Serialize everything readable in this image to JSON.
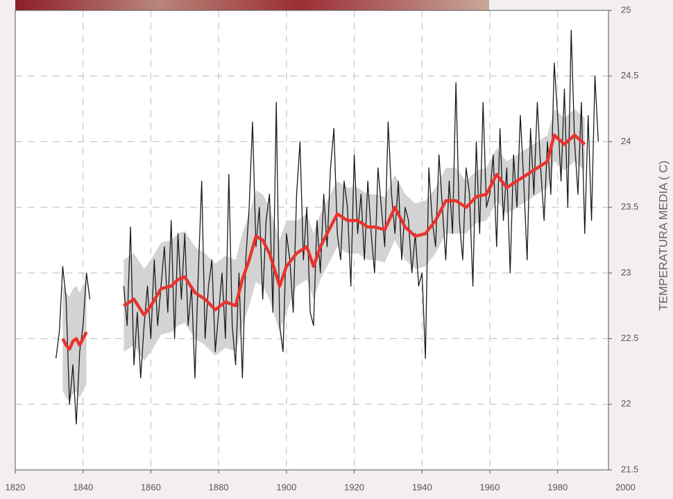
{
  "chart_data": {
    "type": "line",
    "ylabel": "TEMPERATURA MEDIA ( C)",
    "xlim": [
      1820,
      1995
    ],
    "xticks": [
      1820,
      1840,
      1860,
      1880,
      1900,
      1920,
      1940,
      1960,
      1980,
      2000
    ],
    "ylim": [
      21.5,
      25
    ],
    "yticks": [
      21.5,
      22,
      22.5,
      23,
      23.5,
      24,
      24.5,
      25
    ],
    "grid": true,
    "band": {
      "color": "#d3d3d3",
      "x": [
        1834,
        1835,
        1836,
        1837,
        1838,
        1839,
        1840,
        1841,
        1847,
        1852,
        1855,
        1858,
        1860,
        1863,
        1866,
        1868,
        1870,
        1873,
        1876,
        1879,
        1882,
        1885,
        1887,
        1889,
        1891,
        1893,
        1895,
        1898,
        1900,
        1903,
        1906,
        1908,
        1910,
        1912,
        1915,
        1918,
        1921,
        1924,
        1926,
        1929,
        1932,
        1935,
        1938,
        1941,
        1944,
        1947,
        1950,
        1953,
        1956,
        1959,
        1962,
        1965,
        1968,
        1971,
        1974,
        1977,
        1979,
        1982,
        1985,
        1988
      ],
      "lower": [
        22.1,
        22.05,
        22.02,
        22.08,
        22.1,
        22.05,
        22.1,
        22.15,
        null,
        22.4,
        22.45,
        22.33,
        22.4,
        22.53,
        22.55,
        22.6,
        22.62,
        22.5,
        22.45,
        22.37,
        22.43,
        22.4,
        22.6,
        22.75,
        22.93,
        22.9,
        22.8,
        22.55,
        22.7,
        22.9,
        22.95,
        22.8,
        22.95,
        23.05,
        23.2,
        23.15,
        23.15,
        23.1,
        23.1,
        23.08,
        23.25,
        23.1,
        23.03,
        23.05,
        23.15,
        23.3,
        23.3,
        23.3,
        23.38,
        23.4,
        23.55,
        23.45,
        23.5,
        23.55,
        23.6,
        23.65,
        23.85,
        23.78,
        23.85,
        23.78
      ],
      "upper": [
        22.9,
        22.85,
        22.82,
        22.88,
        22.9,
        22.85,
        22.9,
        22.95,
        null,
        23.1,
        23.15,
        23.03,
        23.1,
        23.23,
        23.25,
        23.3,
        23.32,
        23.2,
        23.15,
        23.07,
        23.13,
        23.1,
        23.3,
        23.45,
        23.63,
        23.6,
        23.5,
        23.25,
        23.4,
        23.4,
        23.45,
        23.3,
        23.45,
        23.55,
        23.7,
        23.65,
        23.65,
        23.6,
        23.6,
        23.58,
        23.75,
        23.6,
        23.53,
        23.55,
        23.65,
        23.8,
        23.8,
        23.7,
        23.78,
        23.8,
        23.95,
        23.85,
        23.9,
        23.95,
        24.0,
        24.05,
        24.25,
        24.18,
        24.25,
        24.18
      ]
    },
    "series": [
      {
        "color": "#1a1a1a",
        "x": [
          1832,
          1833,
          1834,
          1835,
          1836,
          1837,
          1838,
          1839,
          1840,
          1841,
          1842,
          1847,
          1852,
          1853,
          1854,
          1855,
          1856,
          1857,
          1858,
          1859,
          1860,
          1861,
          1862,
          1863,
          1864,
          1865,
          1866,
          1867,
          1868,
          1869,
          1870,
          1871,
          1872,
          1873,
          1874,
          1875,
          1876,
          1877,
          1878,
          1879,
          1880,
          1881,
          1882,
          1883,
          1884,
          1885,
          1886,
          1887,
          1888,
          1889,
          1890,
          1891,
          1892,
          1893,
          1894,
          1895,
          1896,
          1897,
          1898,
          1899,
          1900,
          1901,
          1902,
          1903,
          1904,
          1905,
          1906,
          1907,
          1908,
          1909,
          1910,
          1911,
          1912,
          1913,
          1914,
          1915,
          1916,
          1917,
          1918,
          1919,
          1920,
          1921,
          1922,
          1923,
          1924,
          1925,
          1926,
          1927,
          1928,
          1929,
          1930,
          1931,
          1932,
          1933,
          1934,
          1935,
          1936,
          1937,
          1938,
          1939,
          1940,
          1941,
          1942,
          1943,
          1944,
          1945,
          1946,
          1947,
          1948,
          1949,
          1950,
          1951,
          1952,
          1953,
          1954,
          1955,
          1956,
          1957,
          1958,
          1959,
          1960,
          1961,
          1962,
          1963,
          1964,
          1965,
          1966,
          1967,
          1968,
          1969,
          1970,
          1971,
          1972,
          1973,
          1974,
          1975,
          1976,
          1977,
          1978,
          1979,
          1980,
          1981,
          1982,
          1983,
          1984,
          1985,
          1986,
          1987,
          1988,
          1989,
          1990,
          1991,
          1992
        ],
        "values": [
          22.35,
          22.55,
          23.05,
          22.8,
          22.0,
          22.3,
          21.85,
          22.4,
          22.6,
          23.0,
          22.8,
          null,
          22.9,
          22.6,
          23.35,
          22.3,
          22.7,
          22.2,
          22.6,
          22.9,
          22.5,
          23.1,
          22.6,
          22.9,
          23.2,
          22.7,
          23.4,
          22.5,
          23.3,
          22.8,
          23.3,
          22.6,
          22.9,
          22.2,
          23.0,
          23.7,
          22.5,
          22.9,
          23.1,
          22.4,
          22.7,
          23.0,
          22.5,
          23.75,
          22.6,
          22.3,
          23.0,
          22.2,
          23.1,
          23.5,
          24.15,
          23.2,
          23.5,
          22.8,
          23.4,
          23.6,
          22.7,
          24.3,
          22.6,
          22.4,
          23.3,
          23.1,
          22.7,
          23.6,
          24.0,
          23.1,
          23.5,
          22.7,
          22.6,
          23.4,
          23.0,
          23.6,
          23.2,
          23.8,
          24.1,
          23.3,
          23.1,
          23.7,
          23.5,
          22.9,
          23.9,
          23.3,
          23.6,
          23.1,
          23.7,
          23.3,
          23.0,
          23.8,
          23.5,
          23.2,
          24.15,
          23.6,
          23.3,
          23.7,
          23.1,
          23.5,
          23.4,
          23.0,
          23.3,
          22.9,
          23.0,
          22.35,
          23.8,
          23.4,
          23.2,
          23.9,
          23.5,
          23.1,
          23.7,
          23.3,
          24.45,
          23.4,
          23.1,
          23.8,
          23.6,
          22.9,
          24.0,
          23.3,
          24.3,
          23.5,
          23.6,
          23.9,
          23.2,
          24.1,
          23.4,
          23.8,
          23.0,
          23.9,
          23.5,
          24.2,
          23.7,
          23.1,
          24.1,
          23.6,
          24.3,
          23.8,
          23.4,
          24.0,
          23.6,
          24.6,
          24.2,
          23.7,
          24.4,
          23.5,
          24.85,
          24.0,
          23.6,
          24.3,
          23.3,
          24.2,
          23.4,
          24.5,
          24.0
        ]
      },
      {
        "color": "#e8342e",
        "x": [
          1834,
          1835,
          1836,
          1837,
          1838,
          1839,
          1840,
          1841,
          1847,
          1852,
          1855,
          1858,
          1860,
          1863,
          1866,
          1868,
          1870,
          1873,
          1876,
          1879,
          1882,
          1885,
          1887,
          1889,
          1891,
          1893,
          1895,
          1898,
          1900,
          1903,
          1906,
          1908,
          1910,
          1912,
          1915,
          1918,
          1921,
          1924,
          1926,
          1929,
          1932,
          1935,
          1938,
          1941,
          1944,
          1947,
          1950,
          1953,
          1956,
          1959,
          1962,
          1965,
          1968,
          1971,
          1974,
          1977,
          1979,
          1982,
          1985,
          1988
        ],
        "values": [
          22.5,
          22.45,
          22.42,
          22.48,
          22.5,
          22.45,
          22.5,
          22.55,
          null,
          22.75,
          22.8,
          22.68,
          22.75,
          22.88,
          22.9,
          22.95,
          22.97,
          22.85,
          22.8,
          22.72,
          22.78,
          22.75,
          22.95,
          23.1,
          23.28,
          23.25,
          23.15,
          22.9,
          23.05,
          23.15,
          23.2,
          23.05,
          23.2,
          23.3,
          23.45,
          23.4,
          23.4,
          23.35,
          23.35,
          23.33,
          23.5,
          23.35,
          23.28,
          23.3,
          23.4,
          23.55,
          23.55,
          23.5,
          23.58,
          23.6,
          23.75,
          23.65,
          23.7,
          23.75,
          23.8,
          23.85,
          24.05,
          23.98,
          24.05,
          23.98
        ]
      }
    ]
  }
}
